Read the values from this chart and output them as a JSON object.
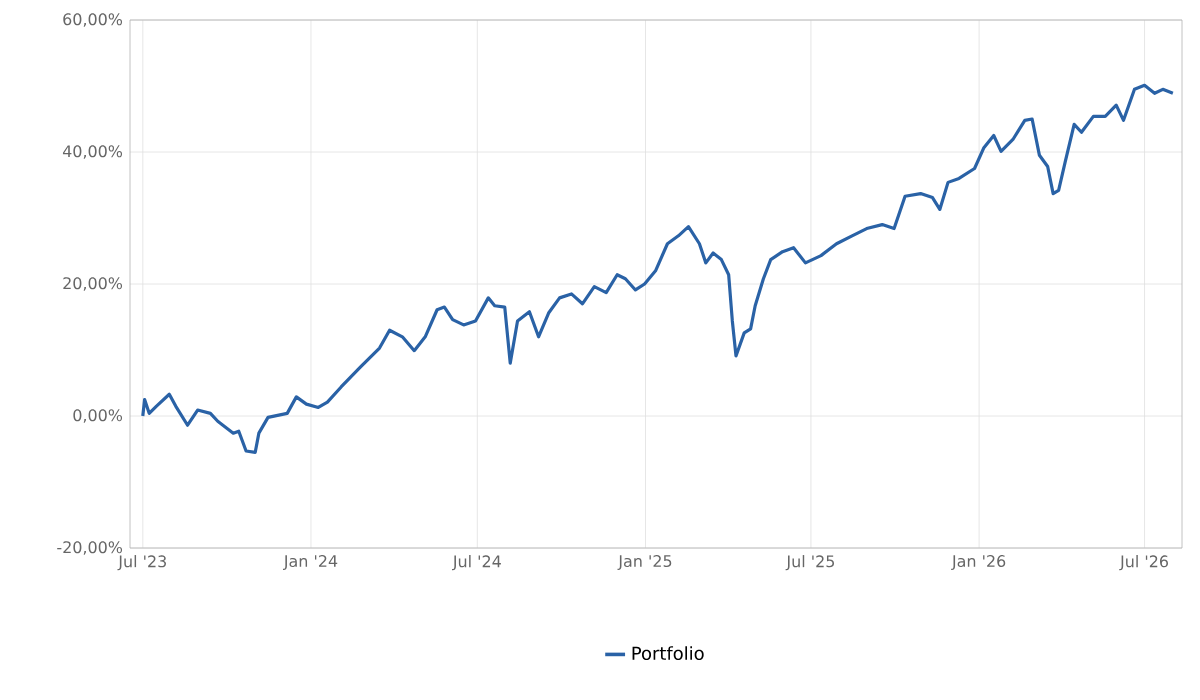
{
  "chart_data": {
    "type": "line",
    "x": [
      "2023-07-01",
      "2023-07-03",
      "2023-07-08",
      "2023-07-16",
      "2023-07-30",
      "2023-08-06",
      "2023-08-19",
      "2023-08-30",
      "2023-09-13",
      "2023-09-21",
      "2023-10-08",
      "2023-10-14",
      "2023-10-22",
      "2023-11-01",
      "2023-11-05",
      "2023-11-15",
      "2023-12-06",
      "2023-12-16",
      "2023-12-27",
      "2024-01-09",
      "2024-01-19",
      "2024-02-03",
      "2024-02-24",
      "2024-03-16",
      "2024-03-27",
      "2024-04-10",
      "2024-04-23",
      "2024-05-05",
      "2024-05-18",
      "2024-05-26",
      "2024-06-04",
      "2024-06-16",
      "2024-06-29",
      "2024-07-13",
      "2024-07-20",
      "2024-07-31",
      "2024-08-06",
      "2024-08-14",
      "2024-08-27",
      "2024-09-06",
      "2024-09-17",
      "2024-09-29",
      "2024-10-12",
      "2024-10-24",
      "2024-11-06",
      "2024-11-19",
      "2024-12-01",
      "2024-12-10",
      "2024-12-21",
      "2024-12-31",
      "2025-01-12",
      "2025-01-25",
      "2025-02-06",
      "2025-02-17",
      "2025-03-01",
      "2025-03-08",
      "2025-03-16",
      "2025-03-25",
      "2025-04-02",
      "2025-04-06",
      "2025-04-10",
      "2025-04-19",
      "2025-04-26",
      "2025-05-01",
      "2025-05-10",
      "2025-05-18",
      "2025-05-31",
      "2025-06-12",
      "2025-06-25",
      "2025-07-12",
      "2025-07-29",
      "2025-08-15",
      "2025-08-31",
      "2025-09-17",
      "2025-09-30",
      "2025-10-12",
      "2025-10-29",
      "2025-11-11",
      "2025-11-19",
      "2025-11-28",
      "2025-12-10",
      "2025-12-27",
      "2026-01-06",
      "2026-01-17",
      "2026-01-25",
      "2026-02-07",
      "2026-02-20",
      "2026-02-28",
      "2026-03-08",
      "2026-03-17",
      "2026-03-23",
      "2026-03-29",
      "2026-04-05",
      "2026-04-15",
      "2026-04-23",
      "2026-05-06",
      "2026-05-19",
      "2026-05-31",
      "2026-06-08",
      "2026-06-20",
      "2026-07-01",
      "2026-07-12",
      "2026-07-21",
      "2026-08-01"
    ],
    "series": [
      {
        "name": "Portfolio",
        "color": "#2a62a6",
        "values": [
          0,
          2.5,
          0.4,
          1.5,
          3.3,
          1.5,
          -1.4,
          0.9,
          0.4,
          -0.8,
          -2.6,
          -2.3,
          -5.3,
          -5.5,
          -2.6,
          -0.2,
          0.4,
          2.9,
          1.8,
          1.3,
          2.1,
          4.4,
          7.4,
          10.3,
          13.0,
          12.0,
          9.9,
          12.0,
          16.1,
          16.5,
          14.6,
          13.8,
          14.4,
          17.9,
          16.7,
          16.5,
          8.0,
          14.4,
          15.8,
          12.0,
          15.6,
          17.9,
          18.5,
          17.0,
          19.6,
          18.7,
          21.4,
          20.8,
          19.1,
          20.0,
          22.0,
          26.1,
          27.3,
          28.7,
          26.1,
          23.2,
          24.7,
          23.7,
          21.4,
          14.4,
          9.1,
          12.6,
          13.2,
          16.7,
          20.8,
          23.7,
          24.9,
          25.5,
          23.2,
          24.3,
          26.1,
          27.3,
          28.4,
          29.0,
          28.4,
          33.3,
          33.7,
          33.1,
          31.3,
          35.4,
          36.0,
          37.5,
          40.6,
          42.5,
          40.1,
          41.9,
          44.8,
          45.0,
          39.5,
          37.8,
          33.7,
          34.2,
          38.4,
          44.2,
          43.0,
          45.4,
          45.4,
          47.1,
          44.8,
          49.5,
          50.1,
          48.9,
          49.5,
          48.9
        ]
      }
    ],
    "xlim": [
      "2023-06-17",
      "2026-08-11"
    ],
    "xticks": [
      {
        "value": "2023-07-01",
        "label": "Jul '23"
      },
      {
        "value": "2024-01-01",
        "label": "Jan '24"
      },
      {
        "value": "2024-07-01",
        "label": "Jul '24"
      },
      {
        "value": "2025-01-01",
        "label": "Jan '25"
      },
      {
        "value": "2025-07-01",
        "label": "Jul '25"
      },
      {
        "value": "2026-01-01",
        "label": "Jan '26"
      },
      {
        "value": "2026-07-01",
        "label": "Jul '26"
      }
    ],
    "ylim": [
      -20,
      60
    ],
    "yticks": [
      {
        "value": -20,
        "label": "-20,00%"
      },
      {
        "value": 0,
        "label": "0,00%"
      },
      {
        "value": 20,
        "label": "20,00%"
      },
      {
        "value": 40,
        "label": "40,00%"
      },
      {
        "value": 60,
        "label": "60,00%"
      }
    ],
    "grid": true,
    "legend": "bottom",
    "marker": "none",
    "line_style": "solid"
  }
}
